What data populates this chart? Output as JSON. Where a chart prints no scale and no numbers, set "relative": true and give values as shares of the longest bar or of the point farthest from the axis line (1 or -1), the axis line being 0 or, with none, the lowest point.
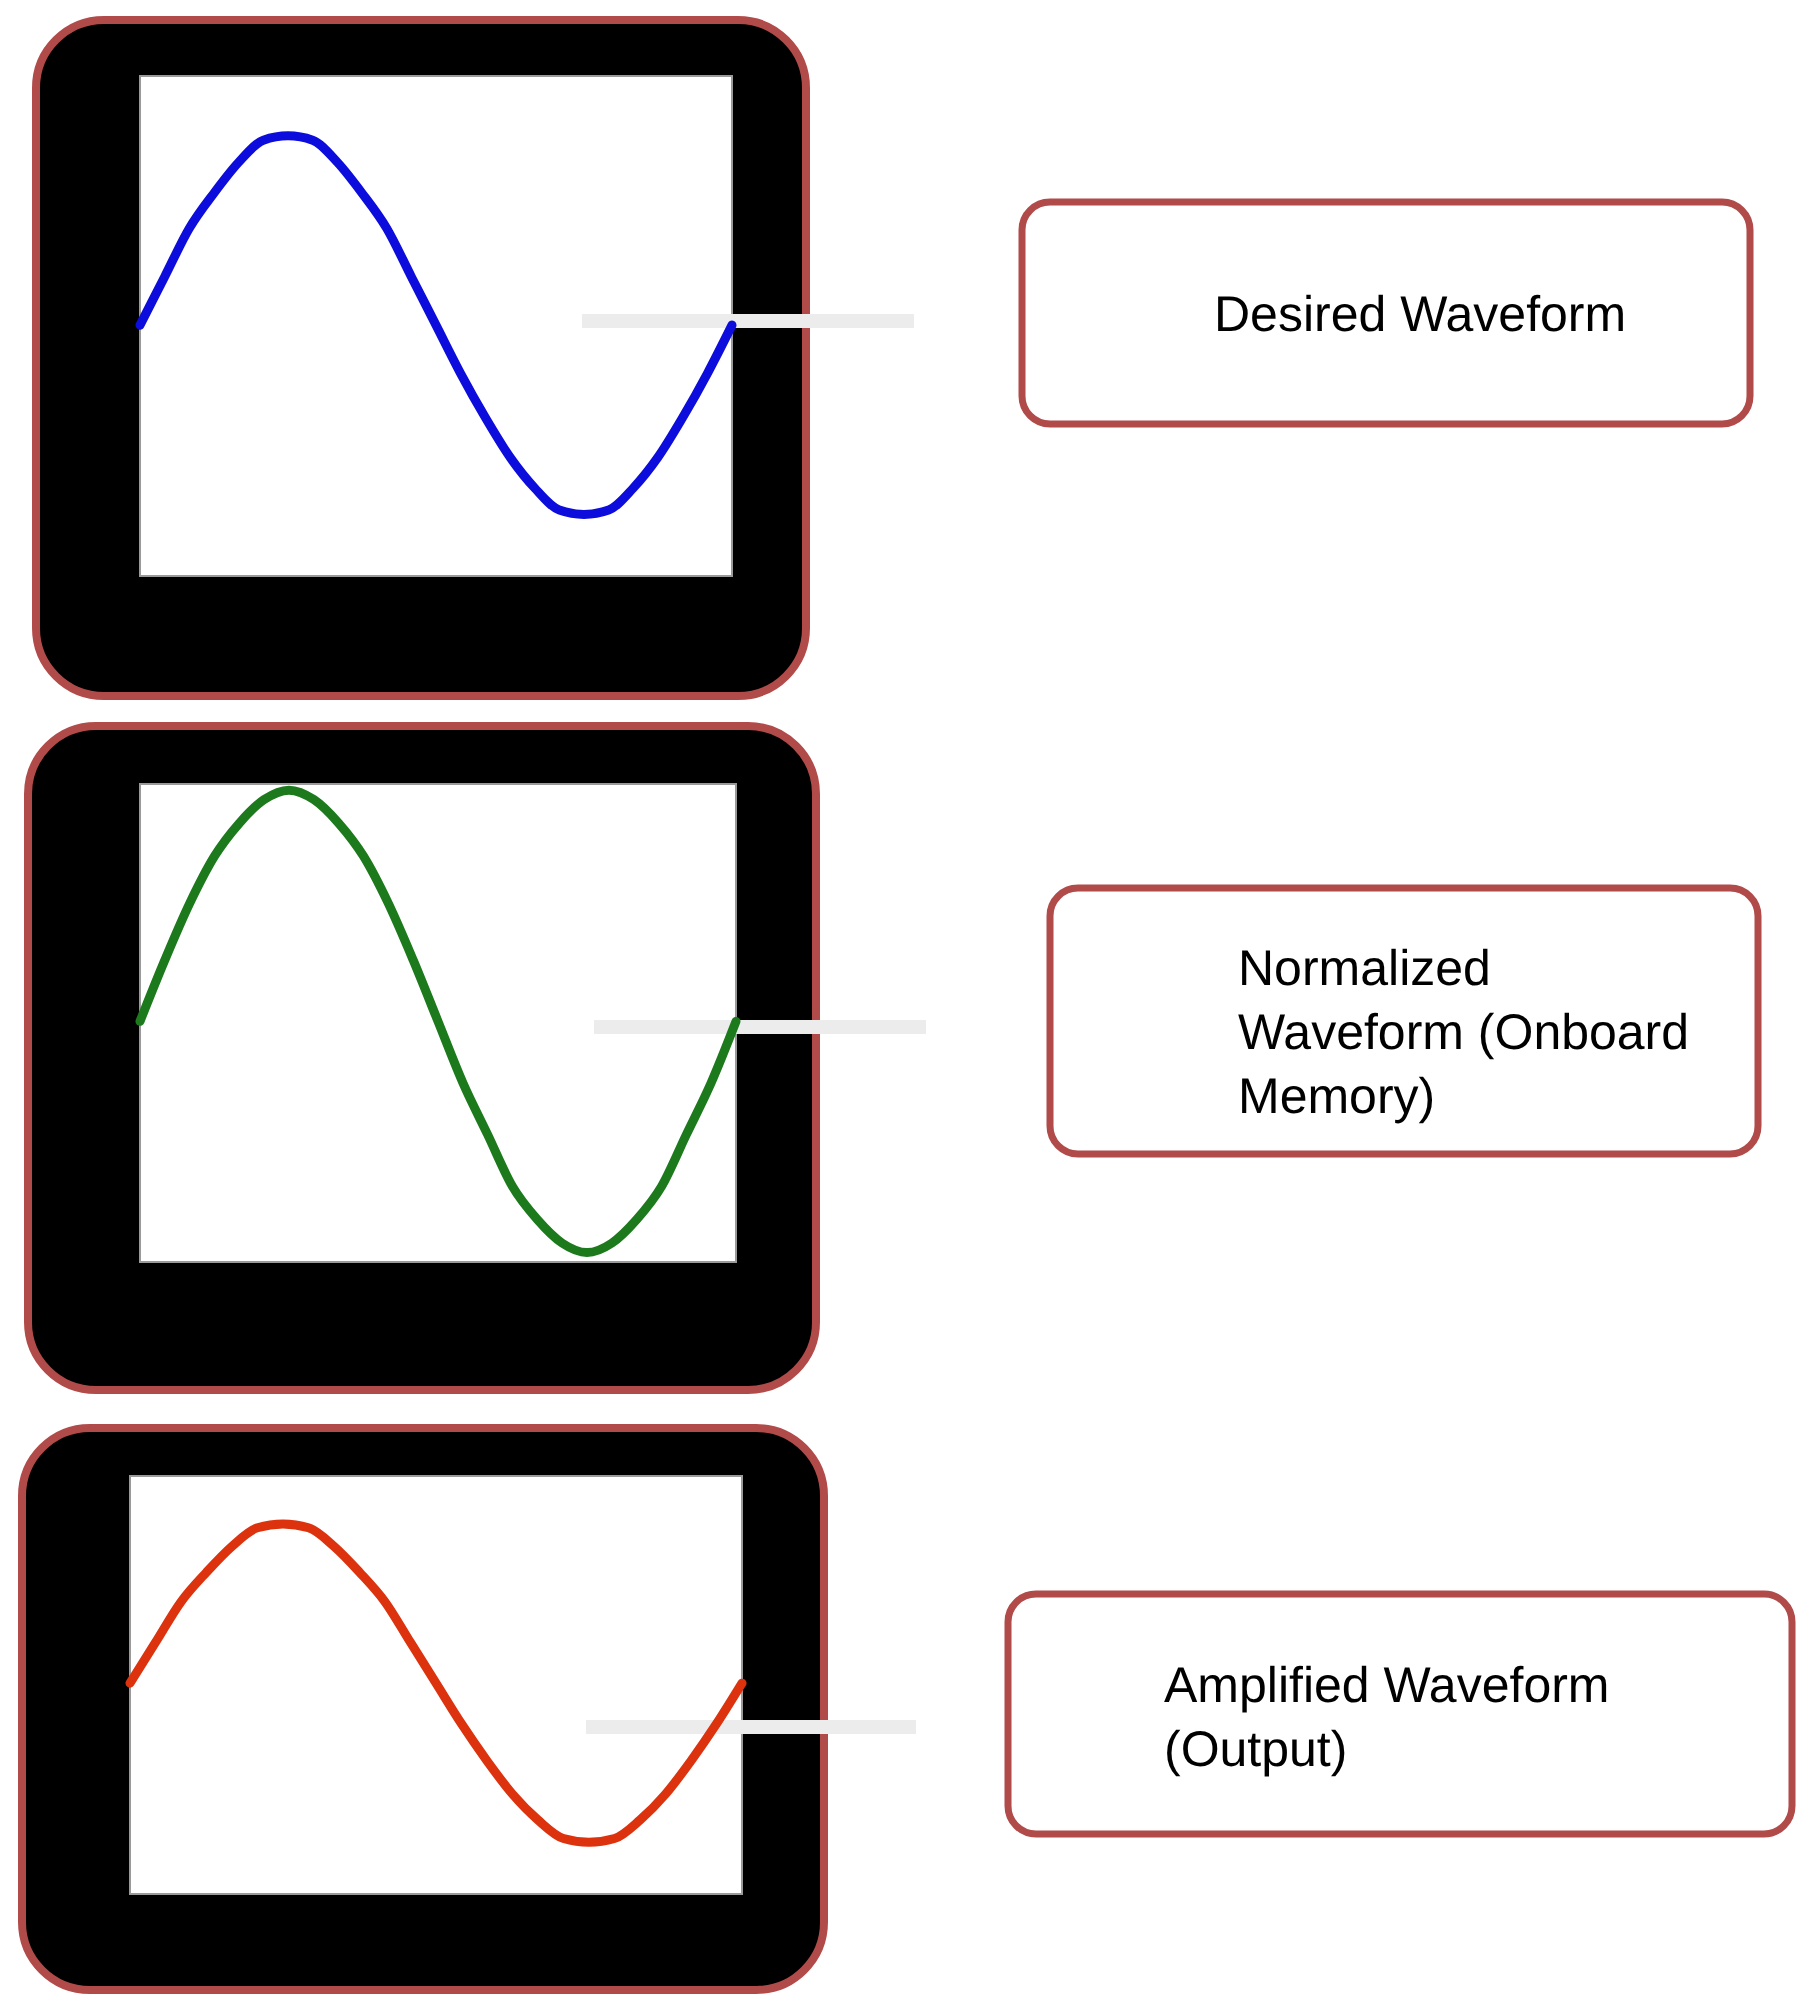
{
  "chart_data": [
    {
      "type": "line",
      "relative": true,
      "categories": [
        null,
        null,
        null,
        null,
        null,
        null,
        null,
        null,
        null,
        null,
        null,
        null,
        null,
        null,
        null,
        null,
        null,
        null,
        null,
        null,
        null,
        null,
        null,
        null,
        null
      ],
      "series": [
        {
          "color": "#0c0cdc",
          "values": [
            0.57,
            0.68,
            0.79,
            0.87,
            0.94,
            0.99,
            1,
            0.99,
            0.94,
            0.87,
            0.79,
            0.68,
            0.57,
            0.46,
            0.36,
            0.27,
            0.2,
            0.15,
            0.14,
            0.15,
            0.2,
            0.27,
            0.36,
            0.46,
            0.57
          ]
        }
      ],
      "annotations": [
        "Desired Waveform"
      ]
    },
    {
      "type": "line",
      "relative": true,
      "categories": [
        null,
        null,
        null,
        null,
        null,
        null,
        null,
        null,
        null,
        null,
        null,
        null,
        null,
        null,
        null,
        null,
        null,
        null,
        null,
        null,
        null,
        null,
        null,
        null,
        null
      ],
      "series": [
        {
          "color": "#1c7a1c",
          "values": [
            0.51,
            0.64,
            0.76,
            0.86,
            0.93,
            0.98,
            1,
            0.98,
            0.93,
            0.86,
            0.76,
            0.64,
            0.51,
            0.38,
            0.27,
            0.16,
            0.09,
            0.04,
            0.02,
            0.04,
            0.09,
            0.16,
            0.27,
            0.38,
            0.51
          ]
        }
      ],
      "annotations": [
        "Normalized Waveform (Onboard Memory)"
      ]
    },
    {
      "type": "line",
      "relative": true,
      "categories": [
        null,
        null,
        null,
        null,
        null,
        null,
        null,
        null,
        null,
        null,
        null,
        null,
        null,
        null,
        null,
        null,
        null,
        null,
        null,
        null,
        null,
        null,
        null,
        null,
        null
      ],
      "series": [
        {
          "color": "#dc320e",
          "values": [
            0.57,
            0.68,
            0.79,
            0.87,
            0.94,
            0.99,
            1,
            0.99,
            0.94,
            0.87,
            0.79,
            0.68,
            0.57,
            0.46,
            0.36,
            0.27,
            0.2,
            0.15,
            0.14,
            0.15,
            0.2,
            0.27,
            0.36,
            0.46,
            0.57
          ]
        }
      ],
      "annotations": [
        "Amplified Waveform (Output)"
      ]
    }
  ]
}
